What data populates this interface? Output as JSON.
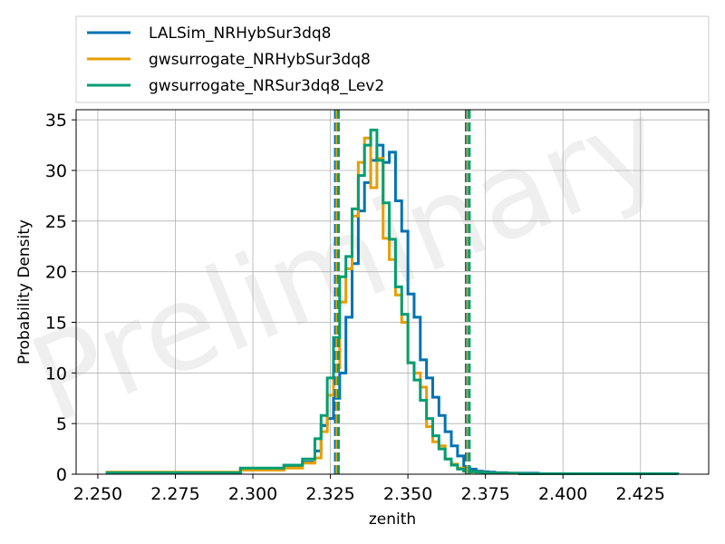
{
  "chart_data": {
    "type": "histogram-step",
    "xlabel": "zenith",
    "ylabel": "Probability Density",
    "xlim": [
      2.243,
      2.447
    ],
    "ylim": [
      0,
      36
    ],
    "xticks": [
      2.25,
      2.275,
      2.3,
      2.325,
      2.35,
      2.375,
      2.4,
      2.425
    ],
    "xtick_labels": [
      "2.250",
      "2.275",
      "2.300",
      "2.325",
      "2.350",
      "2.375",
      "2.400",
      "2.425"
    ],
    "yticks": [
      0,
      5,
      10,
      15,
      20,
      25,
      30,
      35
    ],
    "ytick_labels": [
      "0",
      "5",
      "10",
      "15",
      "20",
      "25",
      "30",
      "35"
    ],
    "grid": true,
    "legend_position": "above",
    "watermark": "Preliminary",
    "series": [
      {
        "name": "LALSim_NRHybSur3dq8",
        "color": "#0072B2",
        "edges": [
          2.253,
          2.296,
          2.31,
          2.316,
          2.32,
          2.322,
          2.324,
          2.326,
          2.328,
          2.33,
          2.332,
          2.334,
          2.336,
          2.338,
          2.34,
          2.342,
          2.344,
          2.346,
          2.348,
          2.35,
          2.352,
          2.354,
          2.356,
          2.358,
          2.36,
          2.362,
          2.364,
          2.366,
          2.368,
          2.37,
          2.372,
          2.374,
          2.376,
          2.378,
          2.382,
          2.386,
          2.392,
          2.437
        ],
        "densities": [
          0.1,
          0.5,
          0.8,
          1.2,
          2.3,
          4.8,
          5.5,
          7.5,
          10.0,
          15.5,
          20.8,
          26.0,
          28.8,
          31.0,
          32.5,
          30.8,
          31.8,
          27.0,
          24.0,
          17.8,
          15.5,
          11.3,
          9.5,
          7.6,
          5.8,
          4.2,
          2.8,
          1.8,
          0.6,
          0.5,
          0.3,
          0.25,
          0.2,
          0.15,
          0.1,
          0.1,
          0.05
        ]
      },
      {
        "name": "gwsurrogate_NRHybSur3dq8",
        "color": "#E69F00",
        "edges": [
          2.253,
          2.296,
          2.31,
          2.316,
          2.32,
          2.322,
          2.324,
          2.326,
          2.328,
          2.33,
          2.332,
          2.334,
          2.336,
          2.338,
          2.34,
          2.342,
          2.344,
          2.346,
          2.348,
          2.35,
          2.352,
          2.354,
          2.356,
          2.358,
          2.36,
          2.362,
          2.364,
          2.366,
          2.368,
          2.37,
          2.372,
          2.374,
          2.376,
          2.378,
          2.382,
          2.386,
          2.392,
          2.437
        ],
        "densities": [
          0.2,
          0.4,
          0.6,
          1.1,
          1.6,
          4.2,
          7.8,
          10.5,
          17.0,
          20.3,
          25.5,
          30.8,
          33.2,
          28.3,
          31.2,
          23.3,
          21.2,
          17.7,
          15.0,
          11.0,
          10.0,
          8.6,
          4.7,
          3.2,
          2.8,
          1.5,
          1.0,
          0.6,
          0.3,
          0.2,
          0.2,
          0.15,
          0.1,
          0.1,
          0.1,
          0.05,
          0.05
        ]
      },
      {
        "name": "gwsurrogate_NRSur3dq8_Lev2",
        "color": "#009E73",
        "edges": [
          2.253,
          2.296,
          2.31,
          2.316,
          2.32,
          2.322,
          2.324,
          2.326,
          2.328,
          2.33,
          2.332,
          2.334,
          2.336,
          2.338,
          2.34,
          2.342,
          2.344,
          2.346,
          2.348,
          2.35,
          2.352,
          2.354,
          2.356,
          2.358,
          2.36,
          2.362,
          2.364,
          2.366,
          2.368,
          2.37,
          2.372,
          2.374,
          2.376,
          2.378,
          2.382,
          2.386,
          2.392,
          2.437
        ],
        "densities": [
          0.15,
          0.6,
          0.9,
          1.5,
          3.5,
          5.8,
          9.5,
          13.5,
          19.5,
          21.5,
          26.2,
          29.5,
          32.5,
          34.0,
          31.0,
          26.8,
          23.2,
          18.5,
          15.8,
          11.0,
          9.3,
          7.3,
          5.5,
          3.8,
          2.5,
          1.5,
          0.9,
          0.5,
          0.3,
          0.25,
          0.2,
          0.15,
          0.1,
          0.1,
          0.1,
          0.05,
          0.05
        ]
      }
    ],
    "vlines": [
      {
        "x": 2.3266,
        "color": "#0072B2"
      },
      {
        "x": 2.3271,
        "color": "#E69F00"
      },
      {
        "x": 2.3276,
        "color": "#009E73"
      },
      {
        "x": 2.3688,
        "color": "#0072B2"
      },
      {
        "x": 2.3693,
        "color": "#E69F00"
      },
      {
        "x": 2.3698,
        "color": "#009E73"
      }
    ]
  }
}
